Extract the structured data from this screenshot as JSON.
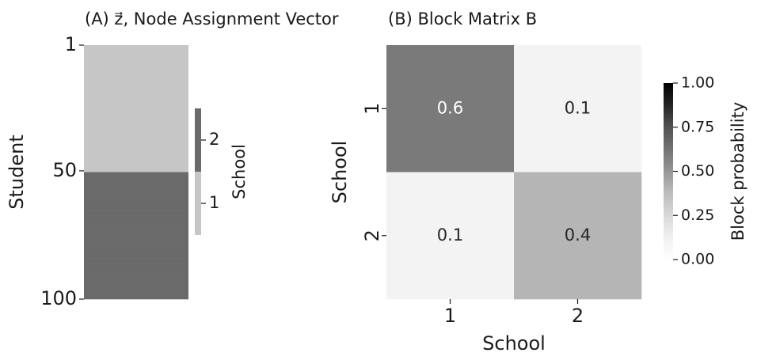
{
  "chart_data": [
    {
      "type": "heatmap",
      "title": "(A) z⃗, Node Assignment Vector",
      "ylabel": "Student",
      "values": [
        1,
        1,
        1,
        1,
        1,
        1,
        1,
        1,
        1,
        1,
        1,
        1,
        1,
        1,
        1,
        1,
        1,
        1,
        1,
        1,
        1,
        1,
        1,
        1,
        1,
        1,
        1,
        1,
        1,
        1,
        1,
        1,
        1,
        1,
        1,
        1,
        1,
        1,
        1,
        1,
        1,
        1,
        1,
        1,
        1,
        1,
        1,
        1,
        1,
        1,
        2,
        2,
        2,
        2,
        2,
        2,
        2,
        2,
        2,
        2,
        2,
        2,
        2,
        2,
        2,
        2,
        2,
        2,
        2,
        2,
        2,
        2,
        2,
        2,
        2,
        2,
        2,
        2,
        2,
        2,
        2,
        2,
        2,
        2,
        2,
        2,
        2,
        2,
        2,
        2,
        2,
        2,
        2,
        2,
        2,
        2,
        2,
        2,
        2,
        2
      ],
      "ylim": [
        1,
        100
      ],
      "yticks": [
        1,
        50,
        100
      ],
      "colorbar_label": "School",
      "levels": [
        1,
        2
      ],
      "colors": [
        "#c6c6c6",
        "#6a6a6a"
      ],
      "clim": [
        0.5,
        2.5
      ]
    },
    {
      "type": "heatmap",
      "title": "(B) Block Matrix B",
      "xlabel": "School",
      "ylabel": "School",
      "x_categories": [
        "1",
        "2"
      ],
      "y_categories": [
        "1",
        "2"
      ],
      "values": [
        [
          0.6,
          0.1
        ],
        [
          0.1,
          0.4
        ]
      ],
      "colorbar_label": "Block probability",
      "cmap": [
        "#ffffff",
        "#f0f0f0",
        "#d9d9d9",
        "#bdbdbd",
        "#969696",
        "#737373",
        "#525252",
        "#252525",
        "#000000"
      ],
      "clim": [
        0,
        1
      ],
      "cticks": [
        {
          "value": 0,
          "label": "0.00"
        },
        {
          "value": 0.25,
          "label": "0.25"
        },
        {
          "value": 0.5,
          "label": "0.50"
        },
        {
          "value": 0.75,
          "label": "0.75"
        },
        {
          "value": 1,
          "label": "1.00"
        }
      ]
    }
  ]
}
